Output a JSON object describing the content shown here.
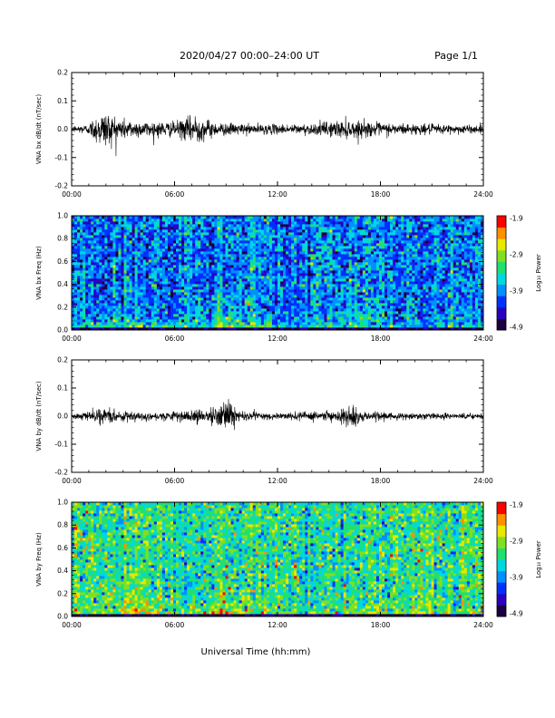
{
  "header": {
    "date_label": "2020/04/27  00:00–24:00 UT",
    "page_label": "Page 1/1"
  },
  "xlabel": "Universal Time (hh:mm)",
  "colors": {
    "trace": "#000000",
    "colormap": [
      "#1a0040",
      "#2a00c0",
      "#0030ff",
      "#0090ff",
      "#00d8e0",
      "#20e070",
      "#80e020",
      "#e8e800",
      "#ff9000",
      "#ff0000"
    ]
  },
  "chart_data": [
    {
      "type": "line",
      "name": "bx-time-series",
      "ylabel": "VNA bx dB/dt (nT/sec)",
      "xlim": [
        0,
        24
      ],
      "ylim": [
        -0.2,
        0.2
      ],
      "xticks": [
        "00:00",
        "06:00",
        "12:00",
        "18:00",
        "24:00"
      ],
      "yticks": [
        "-0.2",
        "-0.1",
        "0.0",
        "0.1",
        "0.2"
      ],
      "envelope": [
        {
          "x": 0.0,
          "amp": 0.012
        },
        {
          "x": 1.0,
          "amp": 0.02
        },
        {
          "x": 1.5,
          "amp": 0.06
        },
        {
          "x": 2.0,
          "amp": 0.07
        },
        {
          "x": 2.5,
          "amp": 0.055
        },
        {
          "x": 3.0,
          "amp": 0.04
        },
        {
          "x": 4.0,
          "amp": 0.03
        },
        {
          "x": 5.0,
          "amp": 0.03
        },
        {
          "x": 6.0,
          "amp": 0.028
        },
        {
          "x": 7.0,
          "amp": 0.05
        },
        {
          "x": 7.2,
          "amp": 0.065
        },
        {
          "x": 7.5,
          "amp": 0.045
        },
        {
          "x": 8.5,
          "amp": 0.025
        },
        {
          "x": 10.0,
          "amp": 0.02
        },
        {
          "x": 12.0,
          "amp": 0.018
        },
        {
          "x": 14.0,
          "amp": 0.02
        },
        {
          "x": 15.0,
          "amp": 0.03
        },
        {
          "x": 16.0,
          "amp": 0.035
        },
        {
          "x": 17.0,
          "amp": 0.03
        },
        {
          "x": 18.0,
          "amp": 0.025
        },
        {
          "x": 19.0,
          "amp": 0.022
        },
        {
          "x": 20.0,
          "amp": 0.02
        },
        {
          "x": 22.0,
          "amp": 0.018
        },
        {
          "x": 24.0,
          "amp": 0.015
        }
      ]
    },
    {
      "type": "heatmap",
      "name": "bx-spectrogram",
      "ylabel": "VNA bx Freq (Hz)",
      "xlim": [
        0,
        24
      ],
      "ylim": [
        0.0,
        1.0
      ],
      "xticks": [
        "00:00",
        "06:00",
        "12:00",
        "18:00",
        "24:00"
      ],
      "yticks": [
        "0.0",
        "0.2",
        "0.4",
        "0.6",
        "0.8",
        "1.0"
      ],
      "colorbar": {
        "label": "Log₁₀ Power",
        "ticks": [
          "-1.9",
          "-2.9",
          "-3.9",
          "-4.9"
        ],
        "range": [
          -4.9,
          -1.9
        ]
      },
      "base_level": -3.9,
      "low_freq_enhancement": [
        {
          "x": 2.5,
          "level": -3.0
        },
        {
          "x": 3.5,
          "level": -3.1
        },
        {
          "x": 9.0,
          "level": -2.5
        },
        {
          "x": 16.5,
          "level": -3.2
        }
      ]
    },
    {
      "type": "line",
      "name": "by-time-series",
      "ylabel": "VNA by dB/dt (nT/sec)",
      "xlim": [
        0,
        24
      ],
      "ylim": [
        -0.2,
        0.2
      ],
      "xticks": [
        "00:00",
        "06:00",
        "12:00",
        "18:00",
        "24:00"
      ],
      "yticks": [
        "-0.2",
        "-0.1",
        "0.0",
        "0.1",
        "0.2"
      ],
      "envelope": [
        {
          "x": 0.0,
          "amp": 0.01
        },
        {
          "x": 1.0,
          "amp": 0.015
        },
        {
          "x": 1.5,
          "amp": 0.03
        },
        {
          "x": 2.0,
          "amp": 0.03
        },
        {
          "x": 3.0,
          "amp": 0.018
        },
        {
          "x": 6.0,
          "amp": 0.015
        },
        {
          "x": 7.0,
          "amp": 0.025
        },
        {
          "x": 8.0,
          "amp": 0.025
        },
        {
          "x": 8.8,
          "amp": 0.05
        },
        {
          "x": 9.2,
          "amp": 0.06
        },
        {
          "x": 9.8,
          "amp": 0.02
        },
        {
          "x": 12.0,
          "amp": 0.012
        },
        {
          "x": 15.5,
          "amp": 0.02
        },
        {
          "x": 16.2,
          "amp": 0.045
        },
        {
          "x": 17.0,
          "amp": 0.02
        },
        {
          "x": 18.0,
          "amp": 0.015
        },
        {
          "x": 24.0,
          "amp": 0.01
        }
      ]
    },
    {
      "type": "heatmap",
      "name": "by-spectrogram",
      "ylabel": "VNA by Freq (Hz)",
      "xlim": [
        0,
        24
      ],
      "ylim": [
        0.0,
        1.0
      ],
      "xticks": [
        "00:00",
        "06:00",
        "12:00",
        "18:00",
        "24:00"
      ],
      "yticks": [
        "0.0",
        "0.2",
        "0.4",
        "0.6",
        "0.8",
        "1.0"
      ],
      "colorbar": {
        "label": "Log₁₀ Power",
        "ticks": [
          "-1.9",
          "-2.9",
          "-3.9",
          "-4.9"
        ],
        "range": [
          -4.9,
          -1.9
        ]
      },
      "base_level": -3.3,
      "low_freq_enhancement": [
        {
          "x": 2.5,
          "level": -2.7
        },
        {
          "x": 3.5,
          "level": -2.6
        },
        {
          "x": 9.0,
          "level": -2.4
        },
        {
          "x": 16.5,
          "level": -2.9
        },
        {
          "x": 18.0,
          "level": -2.9
        }
      ]
    }
  ]
}
